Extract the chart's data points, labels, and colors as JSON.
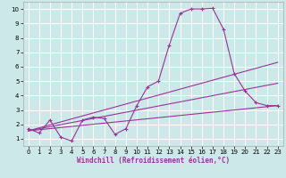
{
  "xlabel": "Windchill (Refroidissement éolien,°C)",
  "bg_color": "#cce8e8",
  "line_color": "#993399",
  "grid_color": "#ffffff",
  "xlim": [
    -0.5,
    23.5
  ],
  "ylim": [
    0.5,
    10.5
  ],
  "xticks": [
    0,
    1,
    2,
    3,
    4,
    5,
    6,
    7,
    8,
    9,
    10,
    11,
    12,
    13,
    14,
    15,
    16,
    17,
    18,
    19,
    20,
    21,
    22,
    23
  ],
  "yticks": [
    1,
    2,
    3,
    4,
    5,
    6,
    7,
    8,
    9,
    10
  ],
  "jagged_x": [
    0,
    1,
    2,
    3,
    4,
    5,
    6,
    7,
    8,
    9,
    10,
    11,
    12,
    13,
    14,
    15,
    16,
    17,
    18,
    19,
    20,
    21,
    22,
    23
  ],
  "jagged_y": [
    1.7,
    1.4,
    2.3,
    1.1,
    0.85,
    2.3,
    2.5,
    2.4,
    1.3,
    1.7,
    3.3,
    4.6,
    5.0,
    7.5,
    9.7,
    10.0,
    10.0,
    10.05,
    8.6,
    5.5,
    4.3,
    3.5,
    3.3,
    3.3
  ],
  "trend1_x": [
    0,
    23
  ],
  "trend1_y": [
    1.55,
    6.3
  ],
  "trend2_x": [
    0,
    23
  ],
  "trend2_y": [
    1.55,
    4.85
  ],
  "trend3_x": [
    0,
    23
  ],
  "trend3_y": [
    1.55,
    3.3
  ],
  "xlabel_fontsize": 5.5,
  "tick_fontsize": 5.0
}
